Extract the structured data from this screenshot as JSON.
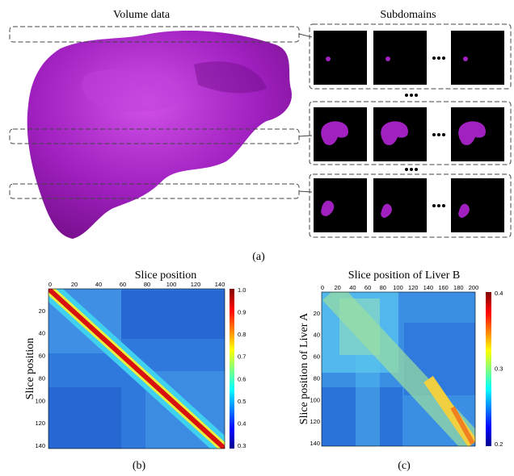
{
  "figure": {
    "panel_a": {
      "left_title": "Volume data",
      "right_title": "Subdomains",
      "caption": "(a)"
    },
    "panel_b": {
      "title": "Slice position",
      "y_label": "Slice position",
      "x_ticks": [
        "0",
        "20",
        "40",
        "60",
        "80",
        "100",
        "120",
        "140"
      ],
      "y_ticks": [
        "20",
        "40",
        "60",
        "80",
        "100",
        "120",
        "140"
      ],
      "colorbar_ticks": [
        "1.0",
        "0.9",
        "0.8",
        "0.7",
        "0.6",
        "0.5",
        "0.4",
        "0.3"
      ],
      "caption": "(b)"
    },
    "panel_c": {
      "title": "Slice position of Liver B",
      "y_label": "Slice position of Liver A",
      "x_ticks": [
        "0",
        "20",
        "40",
        "60",
        "80",
        "100",
        "120",
        "140",
        "160",
        "180",
        "200"
      ],
      "y_ticks": [
        "20",
        "40",
        "60",
        "80",
        "100",
        "120",
        "140"
      ],
      "colorbar_ticks": [
        "0.4",
        "0.3",
        "0.2"
      ],
      "caption": "(c)"
    }
  }
}
